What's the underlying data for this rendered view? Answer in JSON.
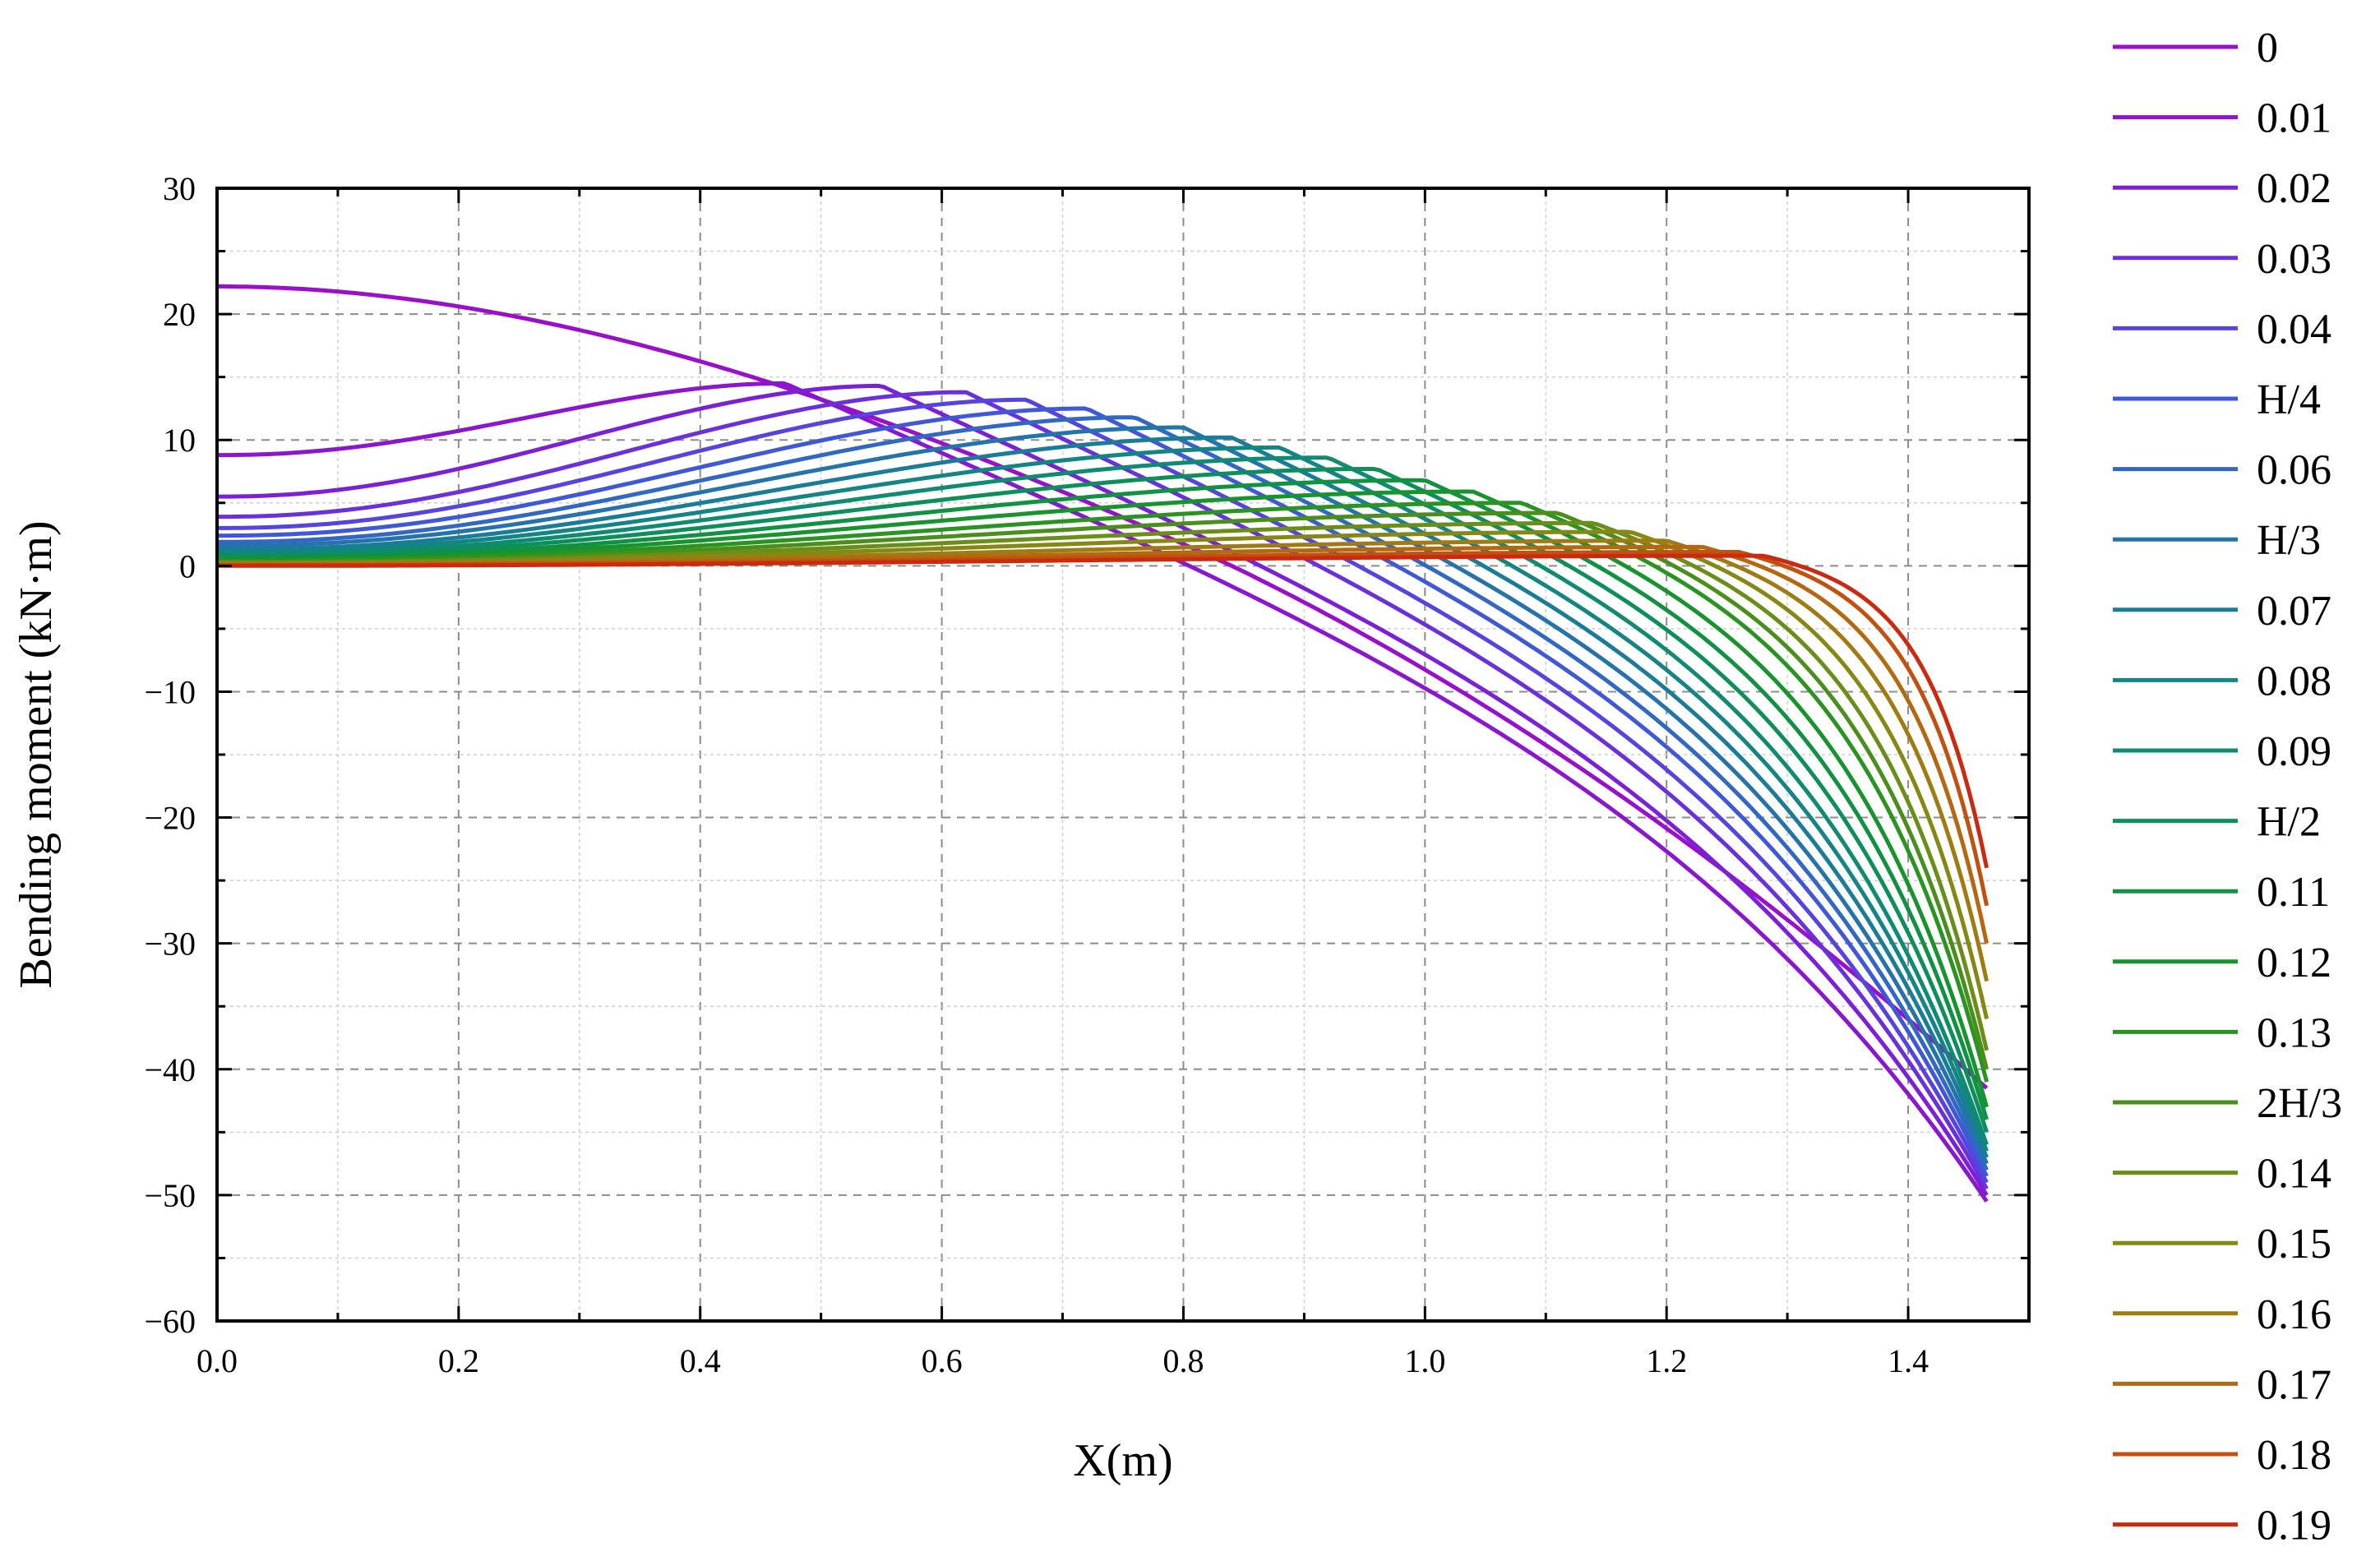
{
  "chart_data": {
    "type": "line",
    "title": "",
    "xlabel": "X(m)",
    "ylabel": "Bending moment (kN·m)",
    "xlim": [
      0,
      1.5
    ],
    "ylim": [
      -60,
      30
    ],
    "x_ticks": [
      "0.0",
      "0.2",
      "0.4",
      "0.6",
      "0.8",
      "1.0",
      "1.2",
      "1.4"
    ],
    "y_ticks": [
      "30",
      "20",
      "10",
      "0",
      "−10",
      "−20",
      "−30",
      "−40",
      "−50",
      "−60"
    ],
    "grid": true,
    "legend_position": "right",
    "x_end": 1.465,
    "series": [
      {
        "name": "0",
        "color": "#9A0FC9",
        "m0": 22.2,
        "peak_x": 0.0,
        "peak_y": 22.2,
        "end_y": -41.5
      },
      {
        "name": "0.01",
        "color": "#8A16CF",
        "m0": 8.8,
        "peak_x": 0.47,
        "peak_y": 14.5,
        "end_y": -50.5
      },
      {
        "name": "0.02",
        "color": "#7B20D6",
        "m0": 5.5,
        "peak_x": 0.55,
        "peak_y": 14.3,
        "end_y": -50.0
      },
      {
        "name": "0.03",
        "color": "#6A30DC",
        "m0": 3.9,
        "peak_x": 0.62,
        "peak_y": 13.8,
        "end_y": -49.5
      },
      {
        "name": "0.04",
        "color": "#5544E0",
        "m0": 3.0,
        "peak_x": 0.67,
        "peak_y": 13.2,
        "end_y": -49.0
      },
      {
        "name": "H/4",
        "color": "#3F58D8",
        "m0": 2.4,
        "peak_x": 0.72,
        "peak_y": 12.5,
        "end_y": -48.5
      },
      {
        "name": "0.06",
        "color": "#3068C4",
        "m0": 1.9,
        "peak_x": 0.76,
        "peak_y": 11.8,
        "end_y": -48.0
      },
      {
        "name": "H/3",
        "color": "#2473AA",
        "m0": 1.6,
        "peak_x": 0.8,
        "peak_y": 11.0,
        "end_y": -47.5
      },
      {
        "name": "0.07",
        "color": "#1A7D98",
        "m0": 1.3,
        "peak_x": 0.84,
        "peak_y": 10.2,
        "end_y": -47.0
      },
      {
        "name": "0.08",
        "color": "#138585",
        "m0": 1.1,
        "peak_x": 0.88,
        "peak_y": 9.4,
        "end_y": -46.5
      },
      {
        "name": "0.09",
        "color": "#0E8B70",
        "m0": 0.9,
        "peak_x": 0.92,
        "peak_y": 8.6,
        "end_y": -46.0
      },
      {
        "name": "H/2",
        "color": "#0C8F5A",
        "m0": 0.75,
        "peak_x": 0.96,
        "peak_y": 7.7,
        "end_y": -45.0
      },
      {
        "name": "0.11",
        "color": "#109242",
        "m0": 0.6,
        "peak_x": 1.0,
        "peak_y": 6.8,
        "end_y": -44.0
      },
      {
        "name": "0.12",
        "color": "#18942E",
        "m0": 0.5,
        "peak_x": 1.04,
        "peak_y": 5.9,
        "end_y": -43.0
      },
      {
        "name": "0.13",
        "color": "#2A9420",
        "m0": 0.4,
        "peak_x": 1.08,
        "peak_y": 5.0,
        "end_y": -41.0
      },
      {
        "name": "2H/3",
        "color": "#4A8E1C",
        "m0": 0.3,
        "peak_x": 1.11,
        "peak_y": 4.2,
        "end_y": -40.0
      },
      {
        "name": "0.14",
        "color": "#6A8E18",
        "m0": 0.25,
        "peak_x": 1.14,
        "peak_y": 3.4,
        "end_y": -38.5
      },
      {
        "name": "0.15",
        "color": "#868814",
        "m0": 0.2,
        "peak_x": 1.17,
        "peak_y": 2.7,
        "end_y": -36.0
      },
      {
        "name": "0.16",
        "color": "#A07B12",
        "m0": 0.15,
        "peak_x": 1.2,
        "peak_y": 2.0,
        "end_y": -33.0
      },
      {
        "name": "0.17",
        "color": "#B4680F",
        "m0": 0.1,
        "peak_x": 1.23,
        "peak_y": 1.5,
        "end_y": -30.0
      },
      {
        "name": "0.18",
        "color": "#C2500E",
        "m0": 0.05,
        "peak_x": 1.26,
        "peak_y": 1.1,
        "end_y": -27.0
      },
      {
        "name": "0.19",
        "color": "#CB2A10",
        "m0": 0.0,
        "peak_x": 1.28,
        "peak_y": 0.8,
        "end_y": -24.0
      }
    ]
  }
}
